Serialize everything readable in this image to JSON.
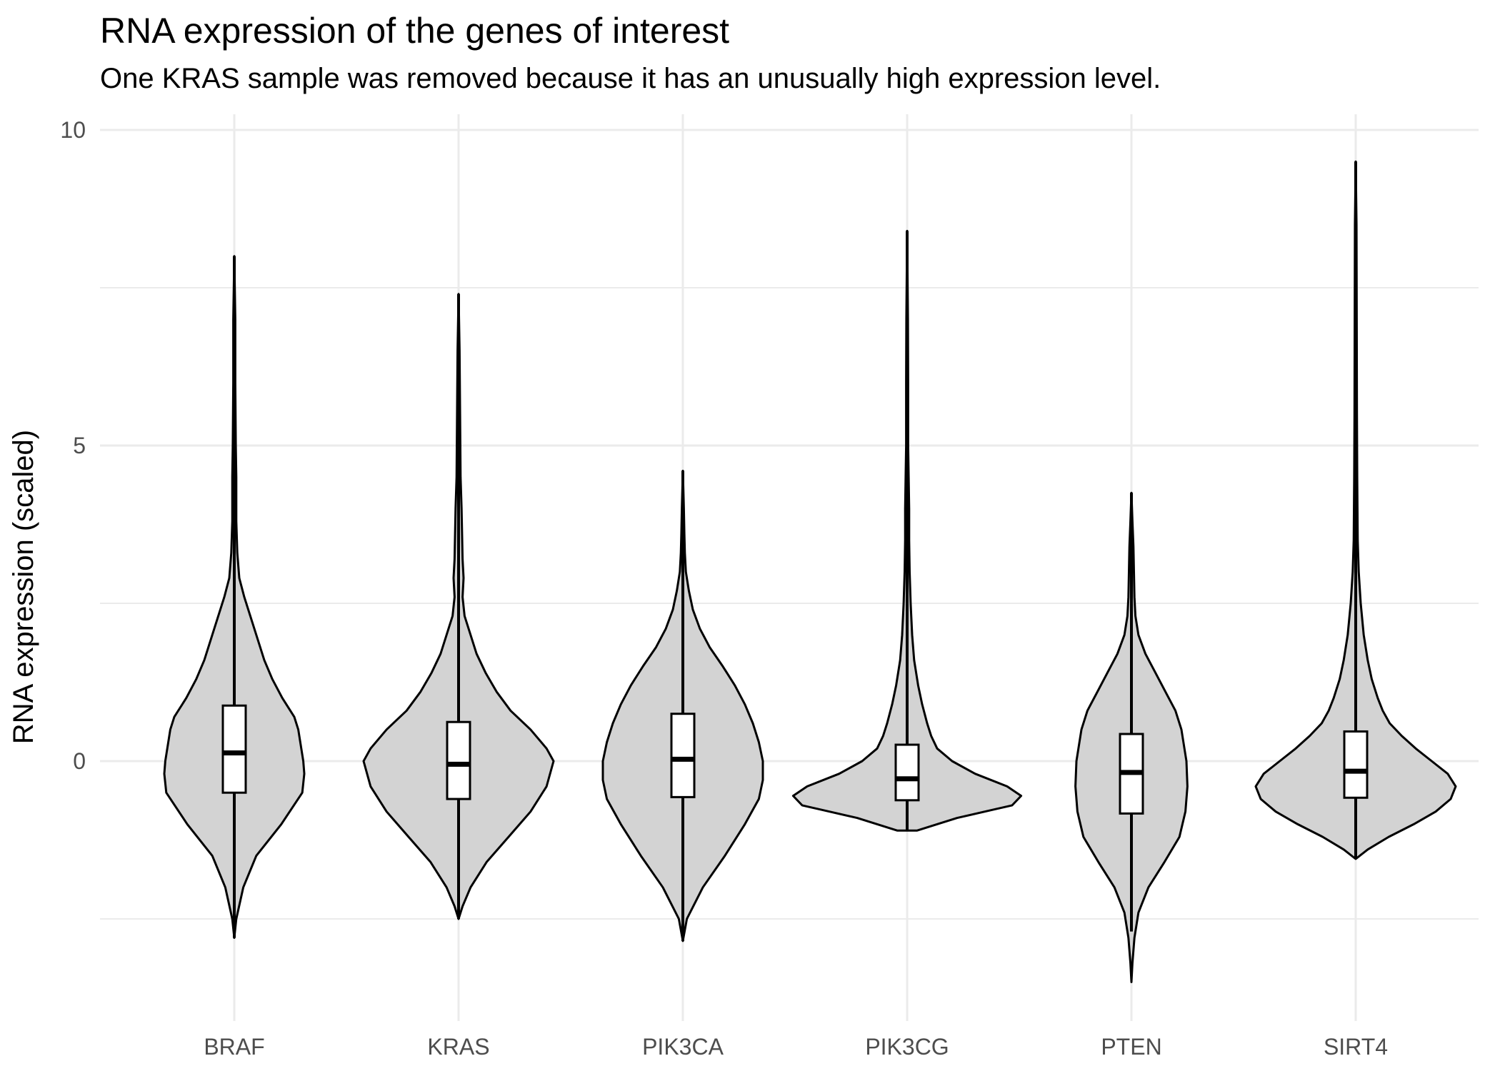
{
  "chart_data": {
    "type": "violin",
    "title": "RNA expression of the genes of interest",
    "subtitle": "One KRAS sample was removed because it has an unusually high expression level.",
    "xlabel": "",
    "ylabel": "RNA expression (scaled)",
    "ylim": [
      -3.9,
      10.2
    ],
    "yticks": [
      0,
      5,
      10
    ],
    "grid": true,
    "categories": [
      "BRAF",
      "KRAS",
      "PIK3CA",
      "PIK3CG",
      "PTEN",
      "SIRT4"
    ],
    "colors": {
      "violin_fill": "#d3d3d3",
      "outline": "#000000",
      "box_fill": "#ffffff",
      "grid": "#ebebeb"
    },
    "series": [
      {
        "box": {
          "median": 0.13,
          "q1": -0.5,
          "q3": 0.88,
          "whisker_low": -2.8,
          "whisker_high": 8.0
        },
        "violin": {
          "y": [
            -2.8,
            -2.5,
            -2.0,
            -1.5,
            -1.0,
            -0.5,
            -0.2,
            0.0,
            0.2,
            0.5,
            0.7,
            1.0,
            1.3,
            1.6,
            2.0,
            2.3,
            2.6,
            2.9,
            3.3,
            3.8,
            4.5,
            5.0,
            6.0,
            7.0,
            8.0
          ],
          "width": [
            0.0,
            0.02,
            0.09,
            0.22,
            0.47,
            0.68,
            0.7,
            0.69,
            0.67,
            0.64,
            0.6,
            0.48,
            0.38,
            0.3,
            0.22,
            0.16,
            0.1,
            0.05,
            0.03,
            0.02,
            0.02,
            0.015,
            0.01,
            0.01,
            0.0
          ]
        }
      },
      {
        "box": {
          "median": -0.05,
          "q1": -0.6,
          "q3": 0.62,
          "whisker_low": -2.5,
          "whisker_high": 7.4
        },
        "violin": {
          "y": [
            -2.5,
            -2.3,
            -2.0,
            -1.6,
            -1.2,
            -0.8,
            -0.4,
            0.0,
            0.2,
            0.5,
            0.8,
            1.1,
            1.4,
            1.7,
            2.0,
            2.3,
            2.6,
            2.9,
            3.2,
            3.6,
            4.0,
            4.5,
            5.5,
            6.5,
            7.4
          ],
          "width": [
            0.0,
            0.04,
            0.12,
            0.28,
            0.5,
            0.72,
            0.88,
            0.95,
            0.88,
            0.72,
            0.52,
            0.38,
            0.27,
            0.18,
            0.12,
            0.06,
            0.04,
            0.05,
            0.04,
            0.035,
            0.03,
            0.02,
            0.015,
            0.01,
            0.0
          ]
        }
      },
      {
        "box": {
          "median": 0.03,
          "q1": -0.57,
          "q3": 0.75,
          "whisker_low": -2.85,
          "whisker_high": 4.6
        },
        "violin": {
          "y": [
            -2.85,
            -2.5,
            -2.0,
            -1.5,
            -1.0,
            -0.6,
            -0.3,
            0.0,
            0.3,
            0.6,
            0.9,
            1.2,
            1.5,
            1.8,
            2.1,
            2.4,
            2.7,
            3.0,
            3.3,
            3.6,
            4.0,
            4.6
          ],
          "width": [
            0.0,
            0.04,
            0.2,
            0.42,
            0.62,
            0.76,
            0.8,
            0.8,
            0.76,
            0.7,
            0.62,
            0.52,
            0.4,
            0.27,
            0.17,
            0.1,
            0.06,
            0.03,
            0.02,
            0.015,
            0.01,
            0.0
          ]
        }
      },
      {
        "box": {
          "median": -0.28,
          "q1": -0.62,
          "q3": 0.26,
          "whisker_low": -1.1,
          "whisker_high": 8.4
        },
        "violin": {
          "y": [
            -1.1,
            -0.9,
            -0.7,
            -0.55,
            -0.4,
            -0.2,
            0.0,
            0.2,
            0.4,
            0.6,
            0.9,
            1.2,
            1.6,
            2.0,
            2.5,
            3.0,
            3.5,
            4.0,
            4.5,
            5.0,
            6.0,
            7.0,
            8.4
          ],
          "width": [
            0.1,
            0.5,
            1.05,
            1.14,
            1.0,
            0.68,
            0.45,
            0.3,
            0.24,
            0.2,
            0.15,
            0.11,
            0.07,
            0.05,
            0.035,
            0.025,
            0.02,
            0.02,
            0.015,
            0.01,
            0.01,
            0.008,
            0.0
          ]
        }
      },
      {
        "box": {
          "median": -0.18,
          "q1": -0.83,
          "q3": 0.43,
          "whisker_low": -2.7,
          "whisker_high": 4.25
        },
        "violin": {
          "y": [
            -3.5,
            -3.2,
            -2.8,
            -2.4,
            -2.0,
            -1.6,
            -1.2,
            -0.8,
            -0.4,
            0.0,
            0.2,
            0.5,
            0.8,
            1.1,
            1.4,
            1.7,
            2.0,
            2.3,
            2.6,
            3.0,
            3.4,
            3.8,
            4.25
          ],
          "width": [
            0.0,
            0.01,
            0.03,
            0.07,
            0.17,
            0.33,
            0.48,
            0.54,
            0.56,
            0.55,
            0.53,
            0.5,
            0.44,
            0.34,
            0.24,
            0.14,
            0.07,
            0.04,
            0.03,
            0.025,
            0.02,
            0.01,
            0.0
          ]
        }
      },
      {
        "box": {
          "median": -0.16,
          "q1": -0.58,
          "q3": 0.47,
          "whisker_low": -1.55,
          "whisker_high": 9.5
        },
        "violin": {
          "y": [
            -1.55,
            -1.4,
            -1.2,
            -1.0,
            -0.8,
            -0.6,
            -0.4,
            -0.2,
            0.0,
            0.2,
            0.4,
            0.6,
            0.8,
            1.0,
            1.3,
            1.6,
            2.0,
            2.5,
            3.0,
            3.5,
            4.5,
            5.5,
            7.0,
            8.5,
            9.5
          ],
          "width": [
            0.0,
            0.12,
            0.33,
            0.58,
            0.8,
            0.95,
            1.0,
            0.92,
            0.76,
            0.6,
            0.46,
            0.34,
            0.27,
            0.22,
            0.16,
            0.12,
            0.08,
            0.05,
            0.03,
            0.02,
            0.015,
            0.012,
            0.01,
            0.008,
            0.0
          ]
        }
      }
    ]
  }
}
